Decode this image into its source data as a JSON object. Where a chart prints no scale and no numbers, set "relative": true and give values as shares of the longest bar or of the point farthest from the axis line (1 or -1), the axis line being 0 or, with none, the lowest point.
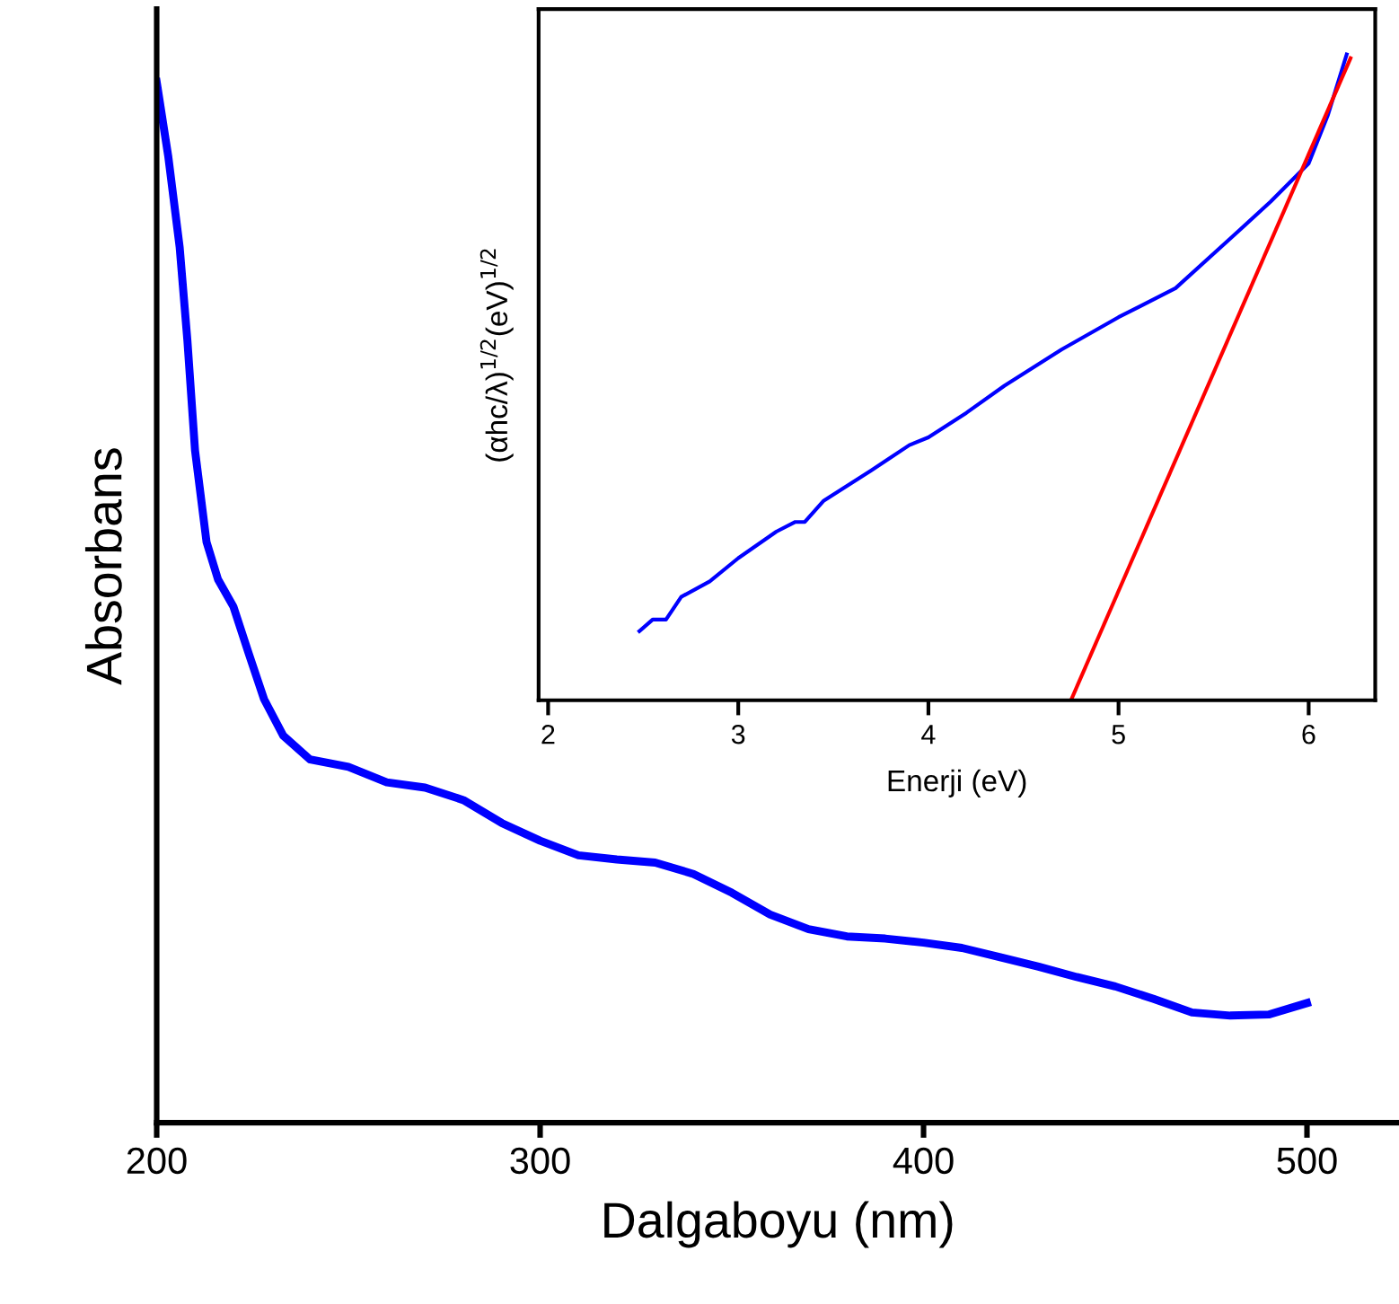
{
  "chart_data": [
    {
      "type": "line",
      "xlabel": "Dalgaboyu (nm)",
      "ylabel": "Absorbans",
      "relative": true,
      "tick_labels": "x",
      "xlim": [
        200,
        524
      ],
      "xticks": [
        200,
        300,
        400,
        500
      ],
      "series": [
        {
          "color": "#0000ff",
          "x": [
            200,
            203,
            206,
            208,
            210,
            213,
            216,
            220,
            224,
            228,
            233,
            240,
            250,
            260,
            270,
            280,
            290,
            300,
            310,
            320,
            330,
            340,
            350,
            360,
            370,
            380,
            390,
            400,
            410,
            420,
            430,
            440,
            450,
            460,
            470,
            480,
            490,
            500
          ],
          "values": [
            1.0,
            0.929,
            0.841,
            0.752,
            0.646,
            0.558,
            0.522,
            0.496,
            0.451,
            0.407,
            0.372,
            0.349,
            0.342,
            0.327,
            0.322,
            0.31,
            0.288,
            0.271,
            0.257,
            0.253,
            0.25,
            0.239,
            0.221,
            0.2,
            0.186,
            0.179,
            0.177,
            0.173,
            0.168,
            0.159,
            0.15,
            0.14,
            0.131,
            0.119,
            0.106,
            0.103,
            0.104,
            0.115
          ]
        }
      ]
    },
    {
      "type": "line",
      "xlabel": "Enerji (eV)",
      "ylabel": "(αhc/λ)$^{1/2}$(eV)$^{1/2}$",
      "relative": true,
      "tick_labels": "x",
      "xlim": [
        1.95,
        6.35
      ],
      "xticks": [
        2,
        3,
        4,
        5,
        6
      ],
      "series": [
        {
          "color": "#0000ff",
          "x": [
            2.48,
            2.55,
            2.62,
            2.7,
            2.85,
            3.0,
            3.2,
            3.3,
            3.35,
            3.45,
            3.7,
            3.9,
            4.0,
            4.2,
            4.4,
            4.7,
            5.0,
            5.3,
            5.6,
            5.8,
            6.0,
            6.1,
            6.2
          ],
          "values": [
            0.107,
            0.125,
            0.125,
            0.16,
            0.184,
            0.22,
            0.261,
            0.276,
            0.276,
            0.309,
            0.356,
            0.395,
            0.407,
            0.445,
            0.487,
            0.543,
            0.593,
            0.638,
            0.718,
            0.772,
            0.831,
            0.905,
            1.0
          ]
        },
        {
          "color": "#ff0000",
          "x": [
            6.22,
            4.75
          ],
          "values": [
            0.994,
            0
          ]
        }
      ]
    }
  ]
}
